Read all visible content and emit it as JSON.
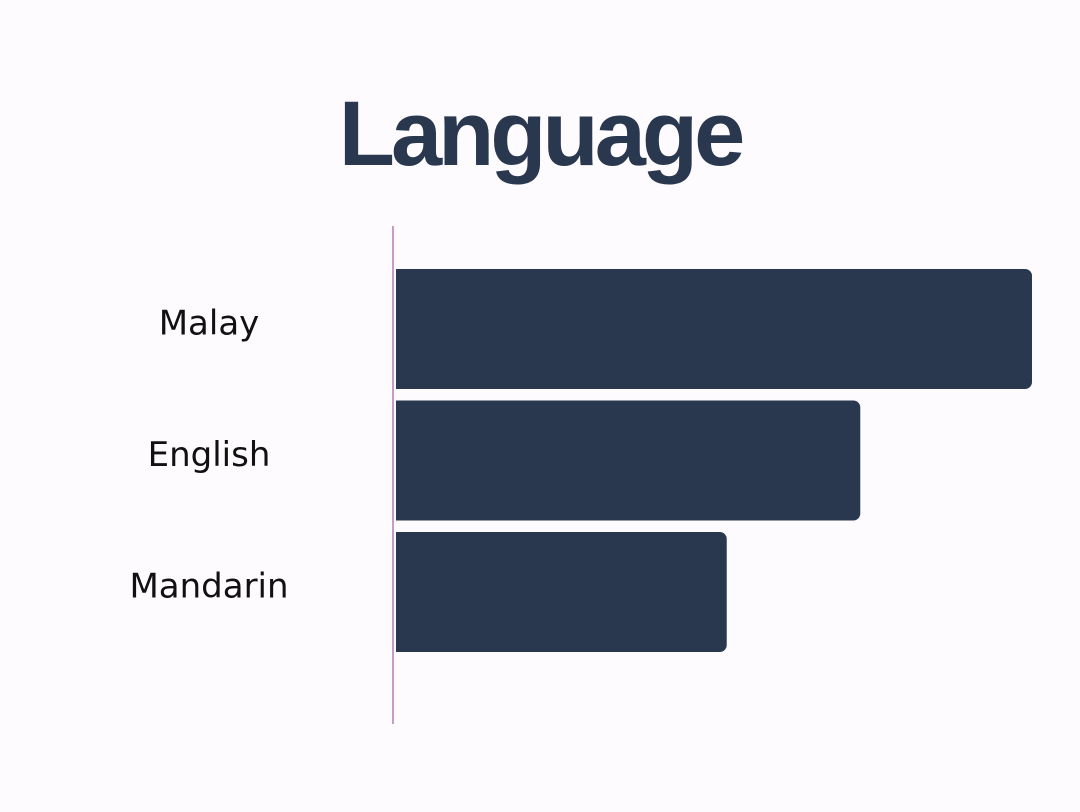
{
  "chart_data": {
    "type": "bar",
    "orientation": "horizontal",
    "title": "Language",
    "categories": [
      "Malay",
      "English",
      "Mandarin"
    ],
    "values": [
      100,
      73,
      52
    ],
    "xlim": [
      0,
      100
    ],
    "xlabel": "",
    "ylabel": "",
    "grid": false,
    "legend": "none",
    "colors": {
      "bar": "#29374f",
      "title": "#29374f",
      "axis": "#c89bc8",
      "background": "#fdfbfd"
    }
  }
}
